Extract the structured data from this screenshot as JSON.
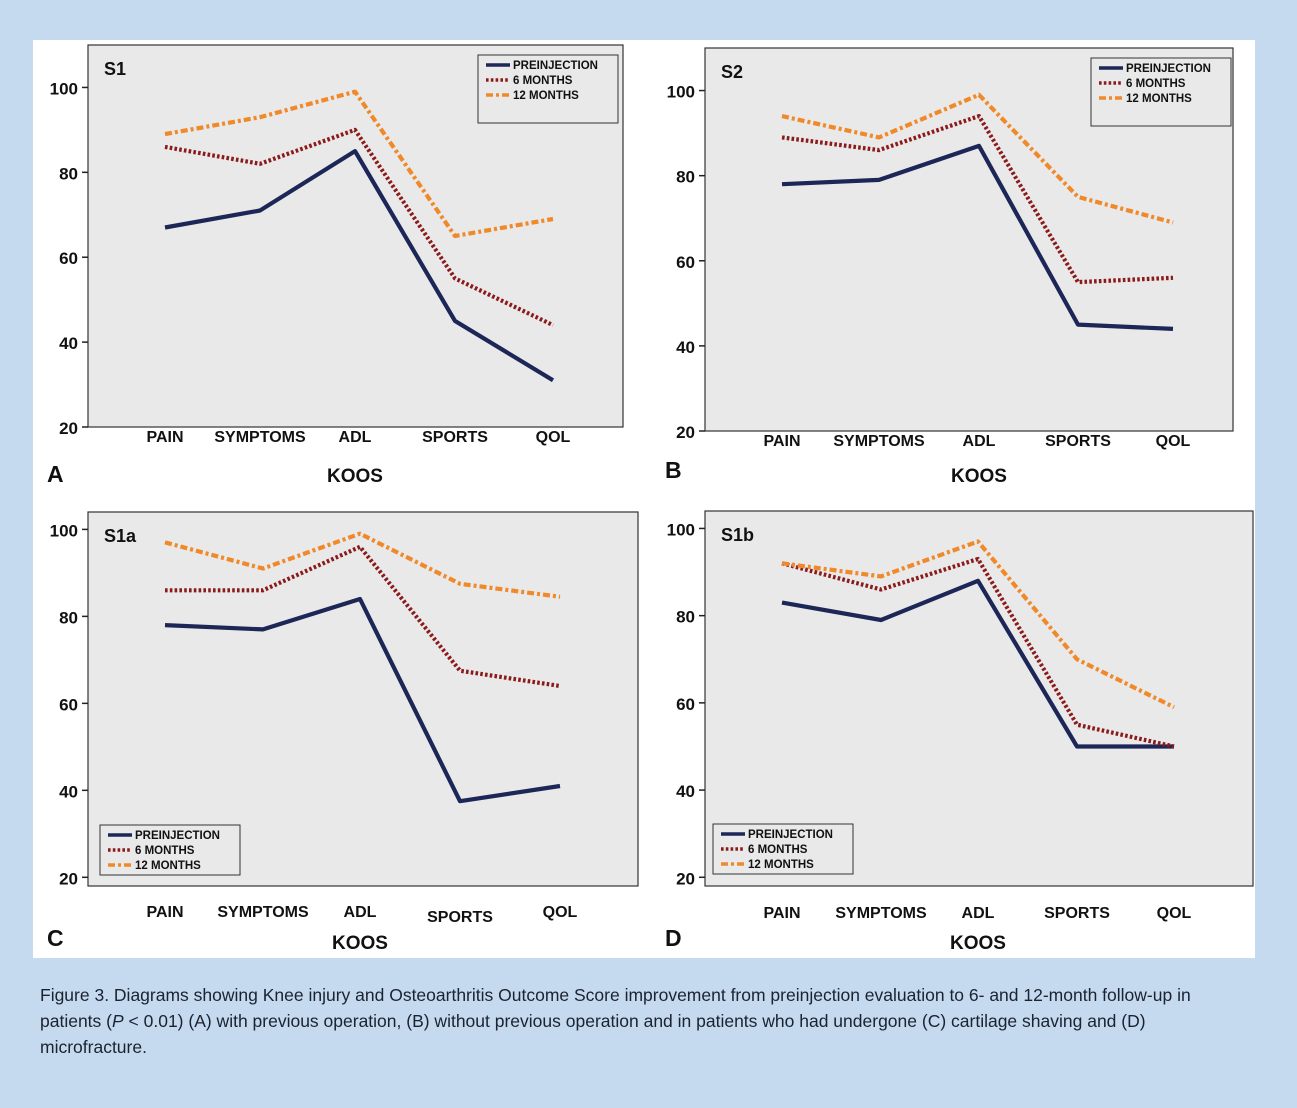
{
  "figure": {
    "caption": {
      "prefix": "Figure 3. Diagrams showing Knee injury and Osteoarthritis Outcome Score improvement from preinjection evaluation to 6- and 12-month follow-up in patients (",
      "p_symbol": "P",
      "suffix": " < 0.01) (A) with previous operation, (B) without previous operation and in patients who had undergone (C) cartilage shaving and (D) microfracture."
    }
  },
  "colors": {
    "preinjection": "#1c2657",
    "six_months": "#8b1a1a",
    "twelve_months": "#f0892a",
    "plot_bg": "#e9e9e9",
    "page_bg": "#c5d9ef"
  },
  "chart_data": [
    {
      "type": "line",
      "panel_letter": "A",
      "title": "S1",
      "xlabel": "KOOS",
      "ylabel": "",
      "categories": [
        "PAIN",
        "SYMPTOMS",
        "ADL",
        "SPORTS",
        "QOL"
      ],
      "y_ticks": [
        20,
        40,
        60,
        80,
        100
      ],
      "ylim": [
        20,
        110
      ],
      "legend_position": "top-right",
      "series": [
        {
          "name": "PREINJECTION",
          "key": "preinjection",
          "values": [
            67,
            71,
            85,
            45,
            31
          ]
        },
        {
          "name": "6 MONTHS",
          "key": "six_months",
          "values": [
            86,
            82,
            90,
            55,
            44
          ]
        },
        {
          "name": "12 MONTHS",
          "key": "twelve_months",
          "values": [
            89,
            93,
            99,
            65,
            69
          ]
        }
      ]
    },
    {
      "type": "line",
      "panel_letter": "B",
      "title": "S2",
      "xlabel": "KOOS",
      "ylabel": "",
      "categories": [
        "PAIN",
        "SYMPTOMS",
        "ADL",
        "SPORTS",
        "QOL"
      ],
      "y_ticks": [
        20,
        40,
        60,
        80,
        100
      ],
      "ylim": [
        20,
        110
      ],
      "legend_position": "top-right",
      "series": [
        {
          "name": "PREINJECTION",
          "key": "preinjection",
          "values": [
            78,
            79,
            87,
            45,
            44
          ]
        },
        {
          "name": "6 MONTHS",
          "key": "six_months",
          "values": [
            89,
            86,
            94,
            55,
            56
          ]
        },
        {
          "name": "12 MONTHS",
          "key": "twelve_months",
          "values": [
            94,
            89,
            99,
            75,
            69
          ]
        }
      ]
    },
    {
      "type": "line",
      "panel_letter": "C",
      "title": "S1a",
      "xlabel": "KOOS",
      "ylabel": "",
      "categories": [
        "PAIN",
        "SYMPTOMS",
        "ADL",
        "SPORTS",
        "QOL"
      ],
      "y_ticks": [
        20,
        40,
        60,
        80,
        100
      ],
      "ylim": [
        18,
        104
      ],
      "legend_position": "bottom-left",
      "series": [
        {
          "name": "PREINJECTION",
          "key": "preinjection",
          "values": [
            78,
            77,
            84,
            37.5,
            41
          ]
        },
        {
          "name": "6 MONTHS",
          "key": "six_months",
          "values": [
            86,
            86,
            96,
            67.5,
            64
          ]
        },
        {
          "name": "12 MONTHS",
          "key": "twelve_months",
          "values": [
            97,
            91,
            99,
            87.5,
            84.5
          ]
        }
      ]
    },
    {
      "type": "line",
      "panel_letter": "D",
      "title": "S1b",
      "xlabel": "KOOS",
      "ylabel": "",
      "categories": [
        "PAIN",
        "SYMPTOMS",
        "ADL",
        "SPORTS",
        "QOL"
      ],
      "y_ticks": [
        20,
        40,
        60,
        80,
        100
      ],
      "ylim": [
        18,
        104
      ],
      "legend_position": "bottom-left",
      "series": [
        {
          "name": "PREINJECTION",
          "key": "preinjection",
          "values": [
            83,
            79,
            88,
            50,
            50
          ]
        },
        {
          "name": "6 MONTHS",
          "key": "six_months",
          "values": [
            92,
            86,
            93,
            55,
            50
          ]
        },
        {
          "name": "12 MONTHS",
          "key": "twelve_months",
          "values": [
            92,
            89,
            97,
            70,
            59
          ]
        }
      ]
    }
  ]
}
